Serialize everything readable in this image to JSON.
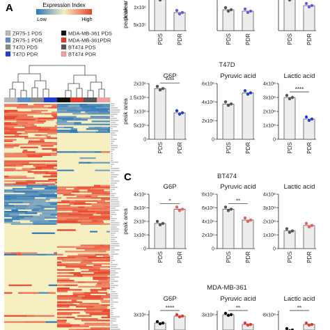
{
  "panel_a": {
    "letter": "A",
    "legend_title": "Expression Index",
    "legend_low": "Low",
    "legend_high": "High",
    "groups": [
      {
        "label": "ZR75-1 PDS",
        "color": "#b9b9b9"
      },
      {
        "label": "ZR75-1 PDR",
        "color": "#5b8ec9"
      },
      {
        "label": "T47D PDS",
        "color": "#8a8a8a"
      },
      {
        "label": "T47D PDR",
        "color": "#1f3fd0"
      },
      {
        "label": "MDA-MB-361 PDS",
        "color": "#111111"
      },
      {
        "label": "MDA-MB-361PDR",
        "color": "#e03a2f"
      },
      {
        "label": "BT474 PDS",
        "color": "#555555"
      },
      {
        "label": "BT474 PDR",
        "color": "#f0a0a0"
      }
    ],
    "colors": {
      "high": "#e8432b",
      "mid": "#f6efc2",
      "low": "#2f77b8"
    }
  },
  "panel_c_letter": "C",
  "chart_data": [
    {
      "type": "bar",
      "panel": "top-partial",
      "title": "",
      "categories": [
        "PDS",
        "PDR"
      ],
      "ylabel": "peak area",
      "yticks": [
        "5x10⁵",
        "1x10⁶"
      ],
      "ylim": [
        0,
        1500000
      ],
      "values": [
        1400000,
        760000
      ],
      "point_color": "#6b5bd6",
      "sig": ""
    },
    {
      "type": "bar",
      "panel": "top-partial",
      "title": "",
      "categories": [
        "PDS",
        "PDR"
      ],
      "ylabel": "",
      "values": [
        720000,
        700000
      ],
      "point_color": "#6b5bd6",
      "sig": ""
    },
    {
      "type": "bar",
      "panel": "top-partial",
      "title": "",
      "categories": [
        "PDS",
        "PDR"
      ],
      "ylabel": "",
      "values": [
        1200000,
        1100000
      ],
      "point_color": "#6b5bd6",
      "sig": ""
    },
    {
      "type": "bar",
      "group_title": "T47D",
      "title": "G6P",
      "categories": [
        "PDS",
        "PDR"
      ],
      "ylabel": "peak area",
      "yticks": [
        "0",
        "5x10⁵",
        "1x10⁶",
        "1.5x10⁶",
        "2x10⁶"
      ],
      "ylim": [
        0,
        2000000
      ],
      "values": [
        1820000,
        950000
      ],
      "point_color": "#1f3fd0",
      "sig": "****"
    },
    {
      "type": "bar",
      "title": "Pyruvic acid",
      "categories": [
        "PDS",
        "PDR"
      ],
      "ylabel": "",
      "yticks": [
        "0",
        "2x10⁶",
        "4x10⁶",
        "6x10⁶"
      ],
      "ylim": [
        0,
        6000000
      ],
      "values": [
        3800000,
        5000000
      ],
      "point_color": "#1f3fd0",
      "sig": ""
    },
    {
      "type": "bar",
      "title": "Lactic acid",
      "categories": [
        "PDS",
        "PDR"
      ],
      "ylabel": "",
      "yticks": [
        "0",
        "1x10⁸",
        "2x10⁸",
        "3x10⁸",
        "4x10⁸"
      ],
      "ylim": [
        0,
        400000000
      ],
      "values": [
        300000000,
        145000000
      ],
      "point_color": "#1f3fd0",
      "sig": "****"
    },
    {
      "type": "bar",
      "group_title": "BT474",
      "title": "G6P",
      "categories": [
        "PDS",
        "PDR"
      ],
      "ylabel": "peak area",
      "yticks": [
        "0",
        "1x10⁶",
        "2x10⁶",
        "3x10⁶",
        "4x10⁶"
      ],
      "ylim": [
        0,
        4000000
      ],
      "values": [
        1850000,
        2900000
      ],
      "point_color": "#e8605a",
      "sig": "*"
    },
    {
      "type": "bar",
      "title": "Pyruvic acid",
      "categories": [
        "PDS",
        "PDR"
      ],
      "ylabel": "",
      "yticks": [
        "0",
        "2x10⁶",
        "4x10⁶",
        "6x10⁶",
        "8x10⁶"
      ],
      "ylim": [
        0,
        8000000
      ],
      "values": [
        5800000,
        4200000
      ],
      "point_color": "#e8605a",
      "sig": "**"
    },
    {
      "type": "bar",
      "title": "Lactic acid",
      "categories": [
        "PDS",
        "PDR"
      ],
      "ylabel": "",
      "yticks": [
        "0",
        "1x10⁸",
        "2x10⁸",
        "3x10⁸",
        "4x10⁸"
      ],
      "ylim": [
        0,
        400000000
      ],
      "values": [
        130000000,
        170000000
      ],
      "point_color": "#e8605a",
      "sig": ""
    },
    {
      "type": "bar",
      "panel": "bottom-partial",
      "group_title": "MDA-MB-361",
      "title": "G6P",
      "categories": [
        "PDS",
        "PDR"
      ],
      "ylabel": "",
      "yticks": [
        "3x10⁶"
      ],
      "values": [
        3000000,
        2800000
      ],
      "point_color": "#e03a2f",
      "sig": "****"
    },
    {
      "type": "bar",
      "panel": "bottom-partial",
      "title": "Pyruvic acid",
      "categories": [
        "PDS",
        "PDR"
      ],
      "ylabel": "",
      "yticks": [
        "3x10⁶"
      ],
      "values": [
        2900000,
        2400000
      ],
      "point_color": "#e03a2f",
      "sig": "**"
    },
    {
      "type": "bar",
      "panel": "bottom-partial",
      "title": "Lactic acid",
      "categories": [
        "PDS",
        "PDR"
      ],
      "ylabel": "",
      "yticks": [
        "8x10⁸"
      ],
      "values": [
        800000000,
        700000000
      ],
      "point_color": "#e03a2f",
      "sig": "**"
    }
  ]
}
